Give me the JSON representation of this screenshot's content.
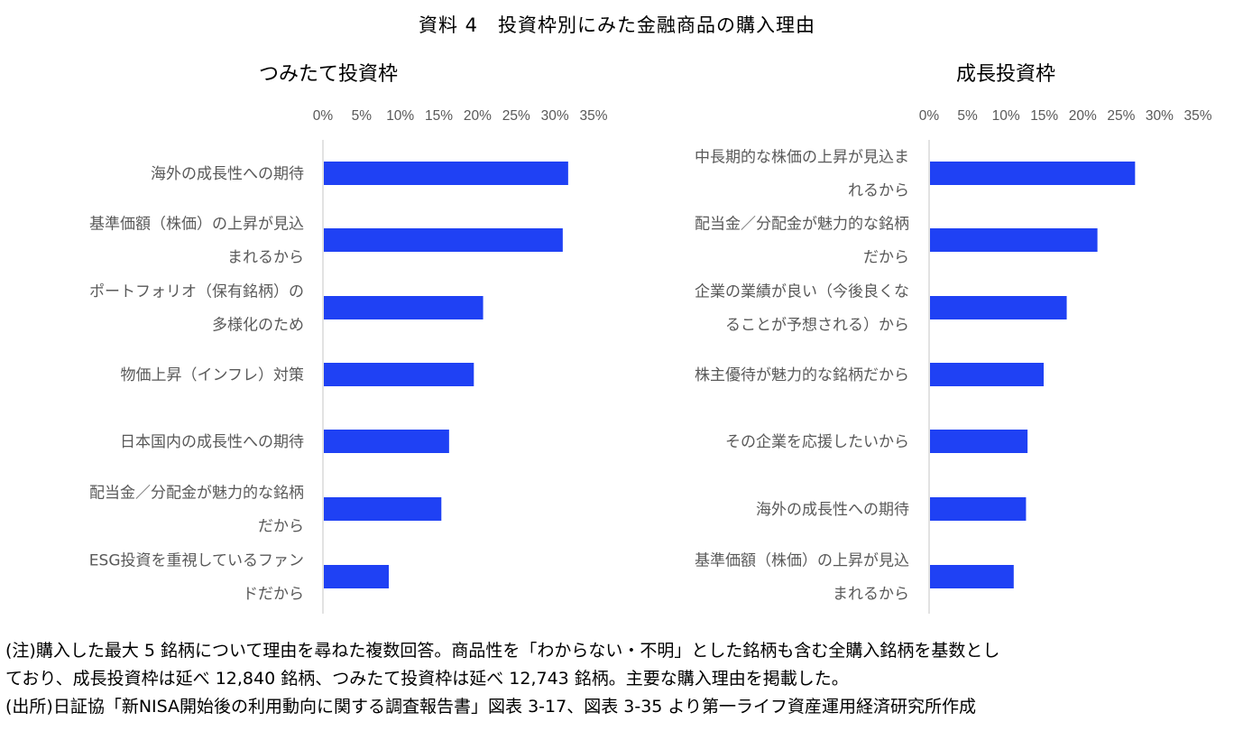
{
  "page_title": "資料 4　投資枠別にみた金融商品の購入理由",
  "notes": [
    "(注)購入した最大 5 銘柄について理由を尋ねた複数回答。商品性を「わからない・不明」とした銘柄も含む全購入銘柄を基数とし",
    "ており、成長投資枠は延べ 12,840 銘柄、つみたて投資枠は延べ 12,743 銘柄。主要な購入理由を掲載した。",
    "(出所)日証協「新NISA開始後の利用動向に関する調査報告書」図表 3-17、図表 3-35 より第一ライフ資産運用経済研究所作成"
  ],
  "colors": {
    "bar": "#1F41F4",
    "axis": "#D9D9D9",
    "tick_text": "#595959"
  },
  "chart_data": [
    {
      "type": "bar",
      "orientation": "horizontal",
      "title": "つみたて投資枠",
      "xlim": [
        0,
        35
      ],
      "xticks": [
        "0%",
        "5%",
        "10%",
        "15%",
        "20%",
        "25%",
        "30%",
        "35%"
      ],
      "categories": [
        [
          "海外の成長性への期待"
        ],
        [
          "基準価額（株価）の上昇が見込",
          "まれるから"
        ],
        [
          "ポートフォリオ（保有銘柄）の",
          "多様化のため"
        ],
        [
          "物価上昇（インフレ）対策"
        ],
        [
          "日本国内の成長性への期待"
        ],
        [
          "配当金／分配金が魅力的な銘柄",
          "だから"
        ],
        [
          "ESG投資を重視しているファン",
          "ドだから"
        ]
      ],
      "values": [
        31.6,
        30.9,
        20.6,
        19.4,
        16.2,
        15.2,
        8.4
      ]
    },
    {
      "type": "bar",
      "orientation": "horizontal",
      "title": "成長投資枠",
      "xlim": [
        0,
        35
      ],
      "xticks": [
        "0%",
        "5%",
        "10%",
        "15%",
        "20%",
        "25%",
        "30%",
        "35%"
      ],
      "categories": [
        [
          "中長期的な株価の上昇が見込ま",
          "れるから"
        ],
        [
          "配当金／分配金が魅力的な銘柄",
          "だから"
        ],
        [
          "企業の業績が良い（今後良くな",
          "ることが予想される）から"
        ],
        [
          "株主優待が魅力的な銘柄だから"
        ],
        [
          "その企業を応援したいから"
        ],
        [
          "海外の成長性への期待"
        ],
        [
          "基準価額（株価）の上昇が見込",
          "まれるから"
        ]
      ],
      "values": [
        26.7,
        21.8,
        17.8,
        14.8,
        12.7,
        12.5,
        10.9
      ]
    }
  ]
}
